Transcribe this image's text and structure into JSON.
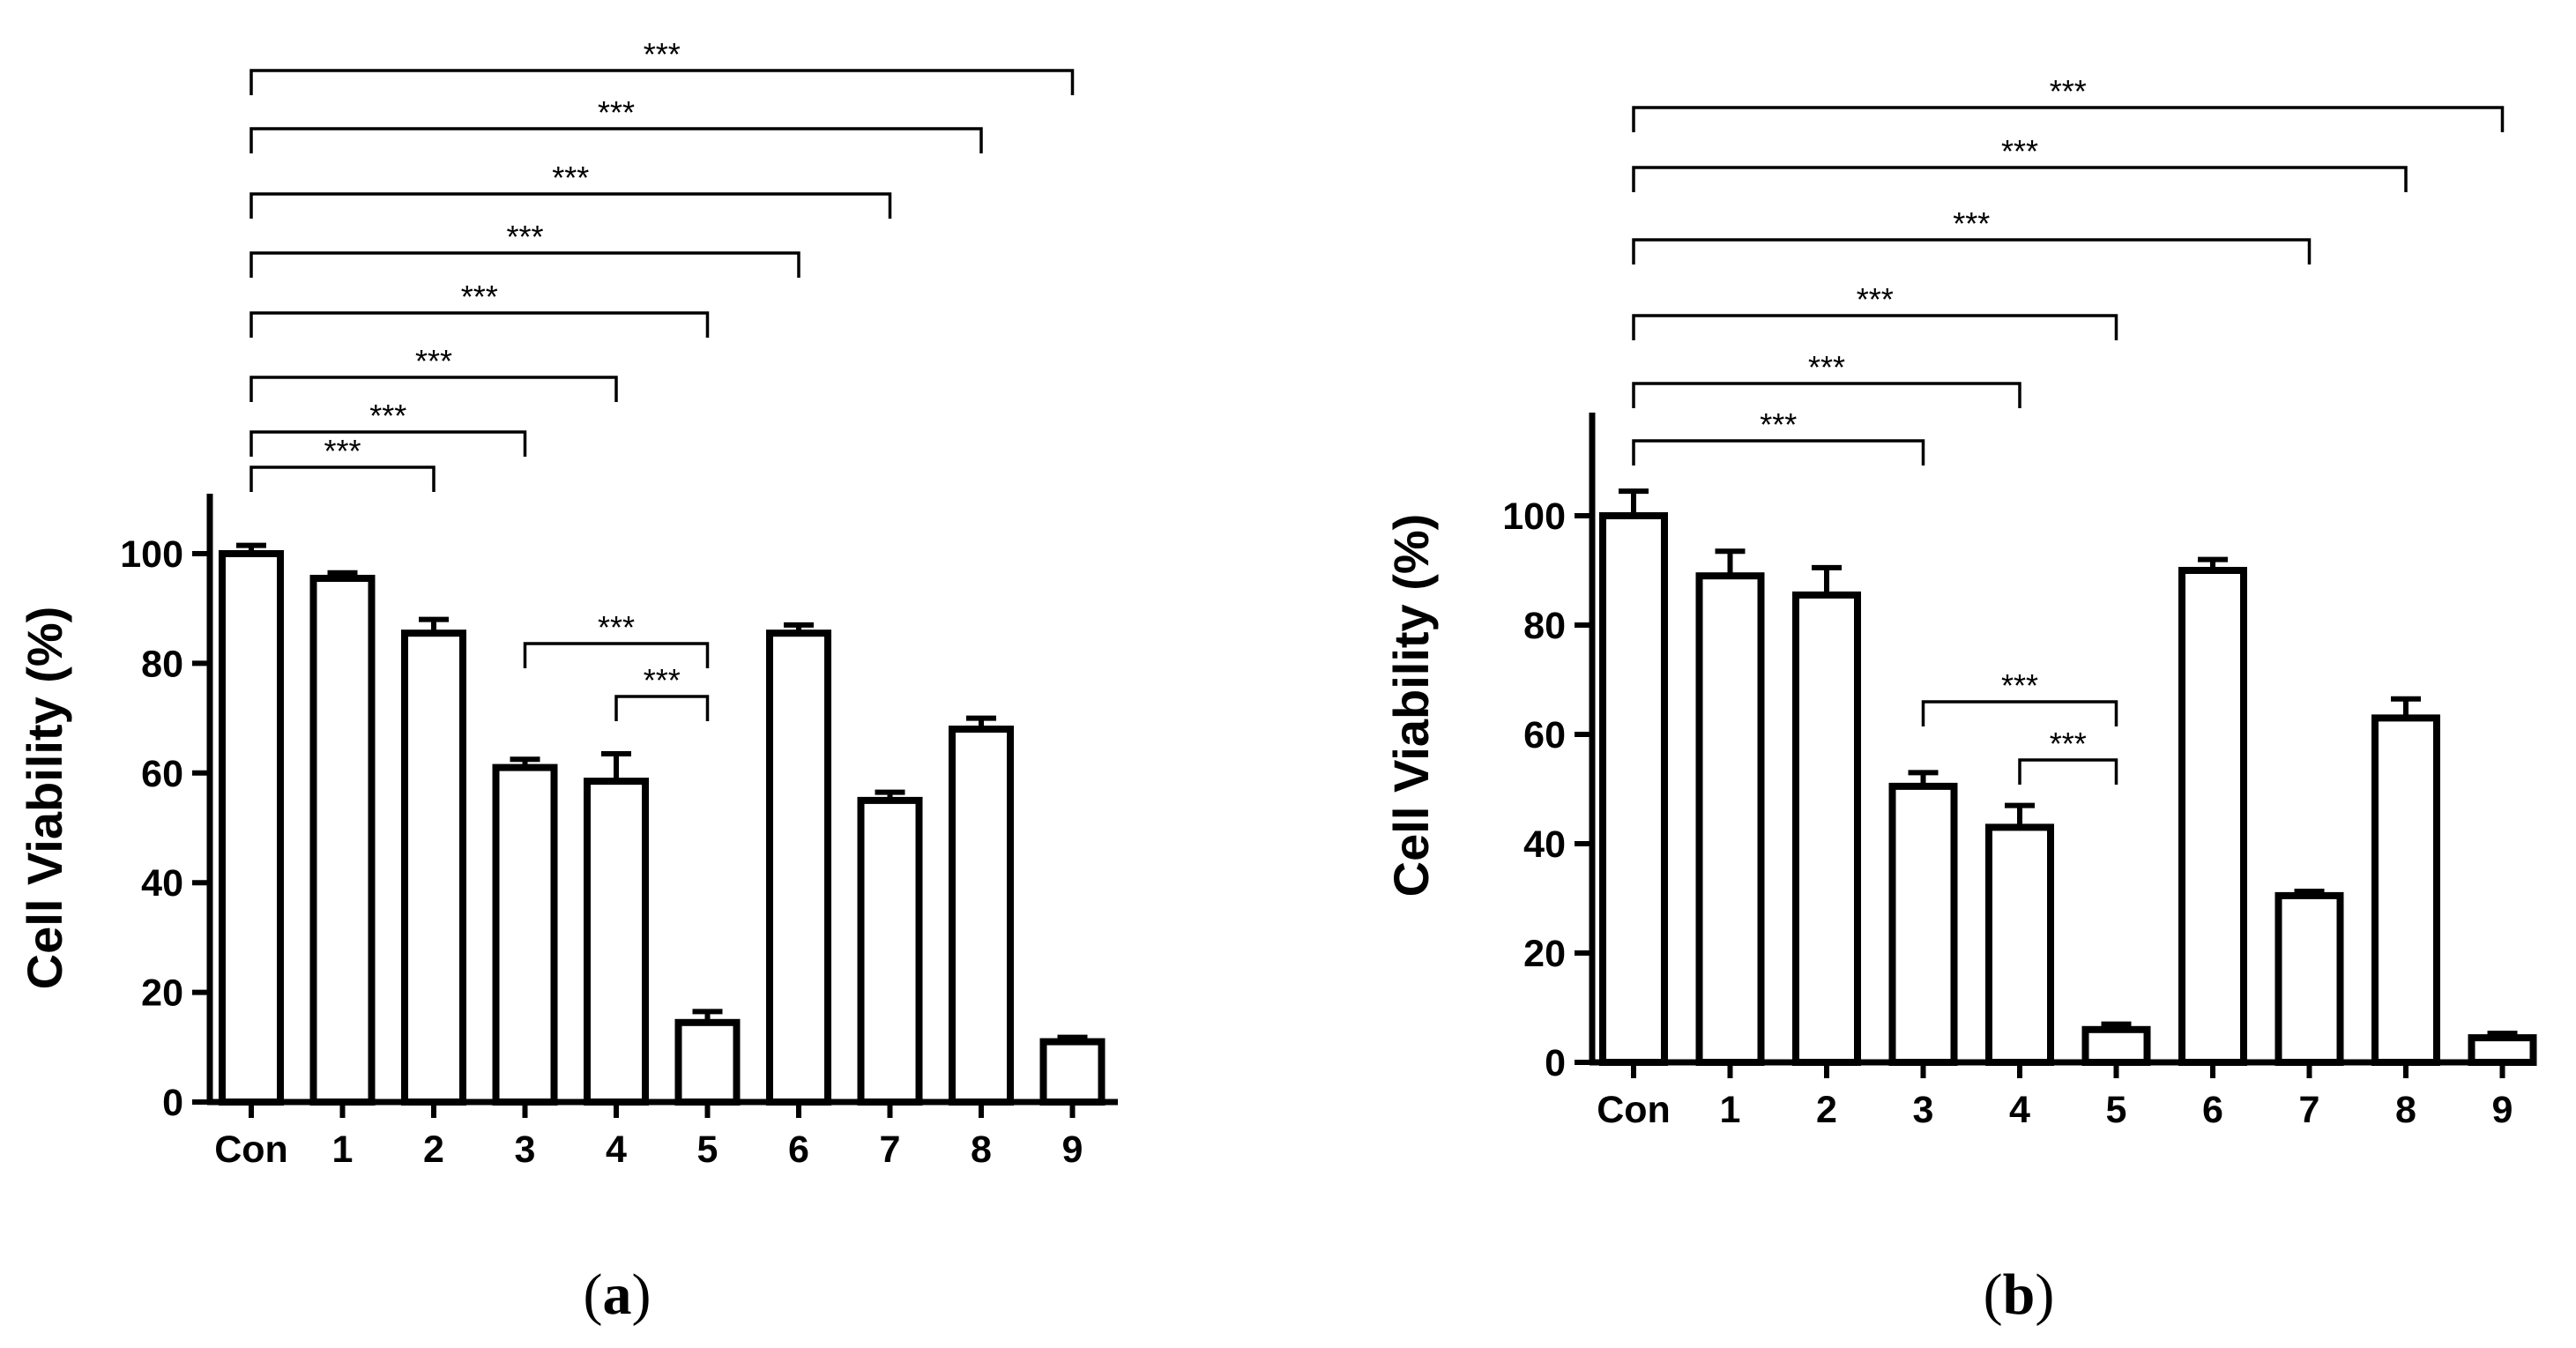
{
  "chart_data": [
    {
      "type": "bar",
      "panel_label": "a",
      "categories": [
        "Con",
        "1",
        "2",
        "3",
        "4",
        "5",
        "6",
        "7",
        "8",
        "9"
      ],
      "values": [
        100,
        95.5,
        85.5,
        61,
        58.5,
        14.5,
        85.5,
        55,
        68,
        11
      ],
      "errors": [
        1.5,
        1,
        2.5,
        1.5,
        5,
        2,
        1.5,
        1.5,
        2,
        0.8
      ],
      "title": "",
      "xlabel": "",
      "ylabel": "Cell Viability (%)",
      "ylim": [
        0,
        110
      ],
      "yticks": [
        0,
        20,
        40,
        60,
        80,
        100
      ],
      "grid": false,
      "significance": [
        {
          "from": "Con",
          "to": "9",
          "label": "***",
          "level": 8
        },
        {
          "from": "Con",
          "to": "8",
          "label": "***",
          "level": 7
        },
        {
          "from": "Con",
          "to": "7",
          "label": "***",
          "level": 6
        },
        {
          "from": "Con",
          "to": "6",
          "label": "***",
          "level": 5
        },
        {
          "from": "Con",
          "to": "5",
          "label": "***",
          "level": 4
        },
        {
          "from": "Con",
          "to": "4",
          "label": "***",
          "level": 3
        },
        {
          "from": "Con",
          "to": "3",
          "label": "***",
          "level": 2
        },
        {
          "from": "Con",
          "to": "2",
          "label": "***",
          "level": 1
        },
        {
          "from": "3",
          "to": "5",
          "label": "***",
          "level": "inner-high"
        },
        {
          "from": "4",
          "to": "5",
          "label": "***",
          "level": "inner-low"
        }
      ]
    },
    {
      "type": "bar",
      "panel_label": "b",
      "categories": [
        "Con",
        "1",
        "2",
        "3",
        "4",
        "5",
        "6",
        "7",
        "8",
        "9"
      ],
      "values": [
        100,
        89,
        85.5,
        50.5,
        43,
        6,
        90,
        30.5,
        63,
        4.5
      ],
      "errors": [
        4.5,
        4.5,
        5,
        2.5,
        4,
        1,
        2,
        0.8,
        3.5,
        0.8
      ],
      "title": "",
      "xlabel": "",
      "ylabel": "Cell Viability (%)",
      "ylim": [
        0,
        120
      ],
      "yticks": [
        0,
        20,
        40,
        60,
        80,
        100
      ],
      "grid": false,
      "significance": [
        {
          "from": "Con",
          "to": "9",
          "label": "***",
          "level": 6
        },
        {
          "from": "Con",
          "to": "8",
          "label": "***",
          "level": 5
        },
        {
          "from": "Con",
          "to": "7",
          "label": "***",
          "level": 4
        },
        {
          "from": "Con",
          "to": "5",
          "label": "***",
          "level": 3
        },
        {
          "from": "Con",
          "to": "4",
          "label": "***",
          "level": 2
        },
        {
          "from": "Con",
          "to": "3",
          "label": "***",
          "level": 1
        },
        {
          "from": "3",
          "to": "5",
          "label": "***",
          "level": "inner-high"
        },
        {
          "from": "4",
          "to": "5",
          "label": "***",
          "level": "inner-low"
        }
      ]
    }
  ]
}
